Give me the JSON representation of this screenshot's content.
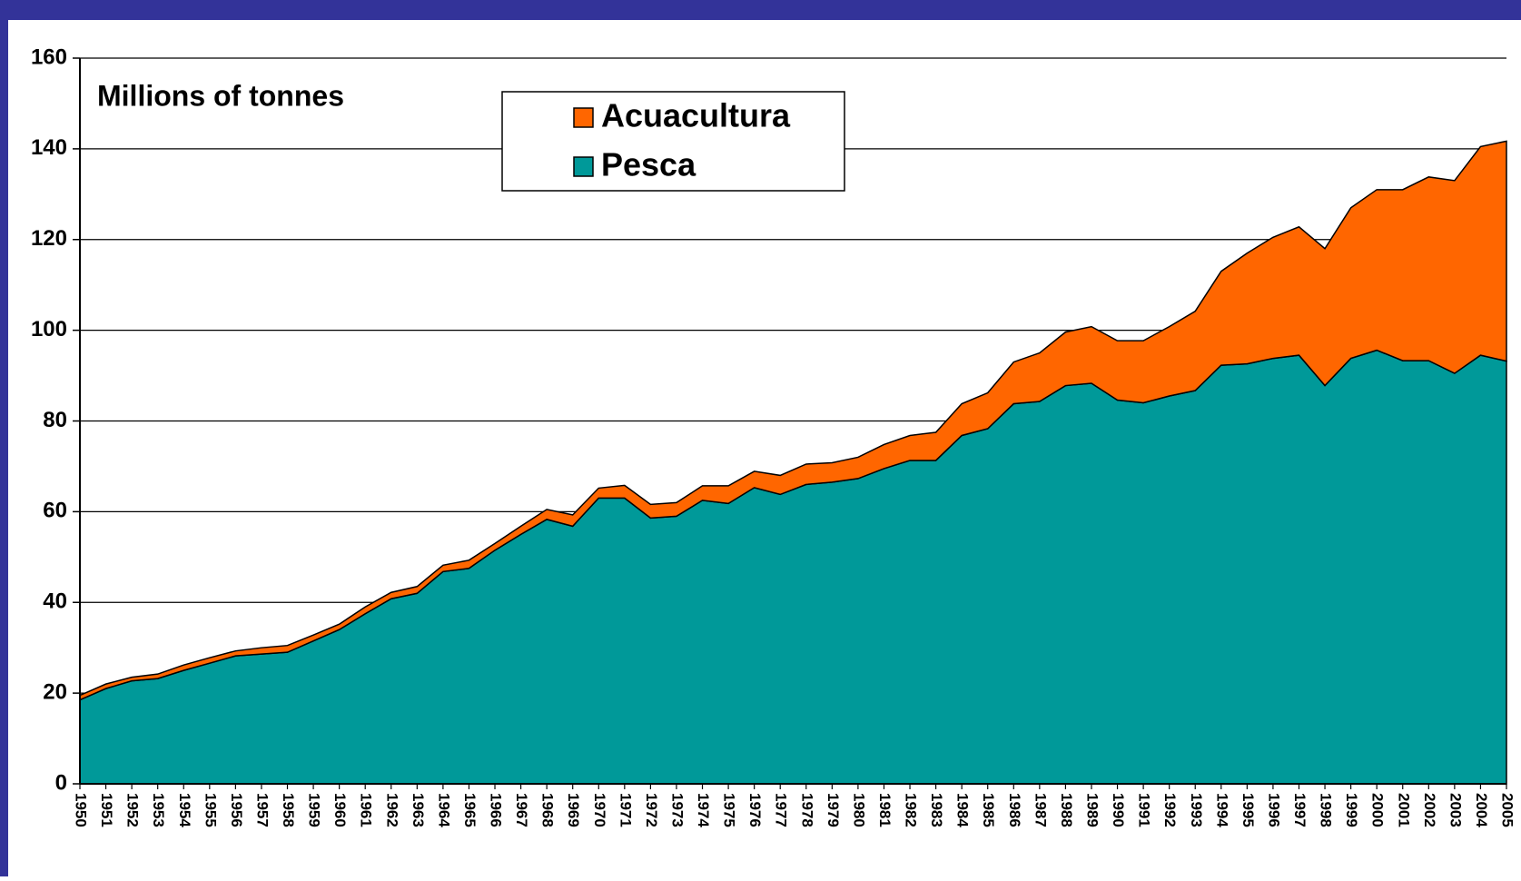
{
  "chart_data": {
    "type": "stacked_area",
    "y_label": "Millions of tonnes",
    "categories": [
      "1950",
      "1951",
      "1952",
      "1953",
      "1954",
      "1955",
      "1956",
      "1957",
      "1958",
      "1959",
      "1960",
      "1961",
      "1962",
      "1963",
      "1964",
      "1965",
      "1966",
      "1967",
      "1968",
      "1969",
      "1970",
      "1971",
      "1972",
      "1973",
      "1974",
      "1975",
      "1976",
      "1977",
      "1978",
      "1979",
      "1980",
      "1981",
      "1982",
      "1983",
      "1984",
      "1985",
      "1986",
      "1987",
      "1988",
      "1989",
      "1990",
      "1991",
      "1992",
      "1993",
      "1994",
      "1995",
      "1996",
      "1997",
      "1998",
      "1999",
      "2000",
      "2001",
      "2002",
      "2003",
      "2004",
      "2005"
    ],
    "series": [
      {
        "name": "Pesca",
        "color": "#009999",
        "values": [
          18.5,
          21,
          22.7,
          23.2,
          25,
          26.6,
          28.2,
          28.6,
          29,
          31.5,
          34,
          37.5,
          40.8,
          42,
          46.8,
          47.5,
          51.5,
          55,
          58.3,
          56.8,
          63,
          63,
          58.6,
          59,
          62.5,
          61.8,
          65.3,
          63.8,
          66,
          66.5,
          67.3,
          69.5,
          71.3,
          71.3,
          76.8,
          78.3,
          83.8,
          84.3,
          87.8,
          88.3,
          84.6,
          84,
          85.5,
          86.7,
          92.3,
          92.6,
          93.8,
          94.5,
          87.8,
          93.8,
          95.6,
          93.3,
          93.3,
          90.5,
          94.5,
          93.2
        ]
      },
      {
        "name": "Acuacultura",
        "color": "#ff6600",
        "values": [
          1.0,
          1.0,
          0.8,
          1.0,
          1.2,
          1.2,
          1.1,
          1.4,
          1.5,
          1.3,
          1.2,
          1.5,
          1.4,
          1.5,
          1.4,
          1.8,
          1.5,
          1.8,
          2.2,
          2.5,
          2.2,
          2.8,
          3.0,
          3.0,
          3.2,
          3.9,
          3.6,
          4.2,
          4.5,
          4.3,
          4.7,
          5.3,
          5.5,
          6.2,
          7.0,
          7.9,
          9.2,
          10.7,
          11.8,
          12.5,
          13.1,
          13.7,
          15.3,
          17.5,
          20.7,
          24.4,
          26.7,
          28.3,
          30.2,
          33.2,
          35.4,
          37.7,
          40.5,
          42.5,
          46,
          48.5
        ]
      }
    ],
    "ylim": [
      0,
      160
    ],
    "yticks": [
      0,
      20,
      40,
      60,
      80,
      100,
      120,
      140,
      160
    ],
    "grid": true
  }
}
